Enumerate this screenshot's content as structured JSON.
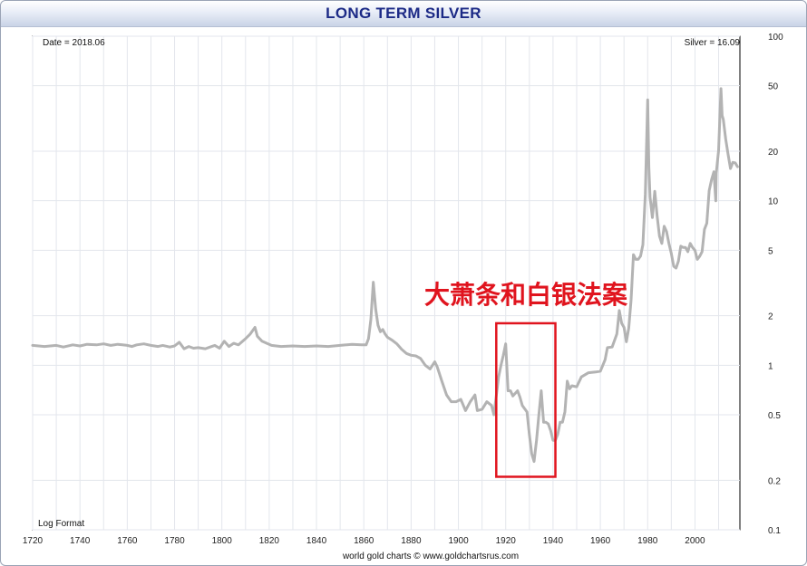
{
  "chart_data": {
    "type": "line",
    "title": "LONG TERM SILVER",
    "date_label": "Date = 2018.06",
    "value_label": "Silver = 16.09",
    "scale_label": "Log Format",
    "credit": "world gold charts © www.goldchartsrus.com",
    "annotation": "大萧条和白银法案",
    "annotation_box": {
      "x": [
        1916,
        1941
      ],
      "y": [
        0.21,
        1.8
      ]
    },
    "y_scale": "log",
    "xlim": [
      1720,
      2019
    ],
    "ylim": [
      0.1,
      100
    ],
    "x_ticks": [
      1720,
      1740,
      1760,
      1780,
      1800,
      1820,
      1840,
      1860,
      1880,
      1900,
      1920,
      1940,
      1960,
      1980,
      2000
    ],
    "y_ticks": [
      "100",
      "50",
      "20",
      "10",
      "5",
      "2",
      "1",
      "0.5",
      "0.2",
      "0.1"
    ],
    "grid": true,
    "line_color": "#b3b3b3",
    "annotation_color": "#e0141e",
    "series": [
      {
        "points": [
          [
            1720,
            1.32
          ],
          [
            1725,
            1.3
          ],
          [
            1730,
            1.32
          ],
          [
            1733,
            1.29
          ],
          [
            1737,
            1.33
          ],
          [
            1740,
            1.31
          ],
          [
            1743,
            1.34
          ],
          [
            1747,
            1.33
          ],
          [
            1750,
            1.35
          ],
          [
            1753,
            1.32
          ],
          [
            1756,
            1.34
          ],
          [
            1758,
            1.33
          ],
          [
            1760,
            1.32
          ],
          [
            1762,
            1.3
          ],
          [
            1764,
            1.33
          ],
          [
            1767,
            1.35
          ],
          [
            1770,
            1.32
          ],
          [
            1773,
            1.3
          ],
          [
            1775,
            1.32
          ],
          [
            1778,
            1.29
          ],
          [
            1780,
            1.31
          ],
          [
            1782,
            1.38
          ],
          [
            1784,
            1.26
          ],
          [
            1786,
            1.3
          ],
          [
            1788,
            1.27
          ],
          [
            1790,
            1.28
          ],
          [
            1793,
            1.26
          ],
          [
            1795,
            1.29
          ],
          [
            1797,
            1.32
          ],
          [
            1799,
            1.27
          ],
          [
            1801,
            1.4
          ],
          [
            1803,
            1.3
          ],
          [
            1805,
            1.36
          ],
          [
            1807,
            1.33
          ],
          [
            1810,
            1.45
          ],
          [
            1812,
            1.55
          ],
          [
            1814,
            1.7
          ],
          [
            1815,
            1.5
          ],
          [
            1817,
            1.4
          ],
          [
            1819,
            1.36
          ],
          [
            1821,
            1.32
          ],
          [
            1825,
            1.3
          ],
          [
            1830,
            1.31
          ],
          [
            1835,
            1.3
          ],
          [
            1840,
            1.31
          ],
          [
            1845,
            1.3
          ],
          [
            1850,
            1.32
          ],
          [
            1855,
            1.34
          ],
          [
            1859,
            1.33
          ],
          [
            1861,
            1.33
          ],
          [
            1862,
            1.45
          ],
          [
            1863,
            1.9
          ],
          [
            1864,
            3.2
          ],
          [
            1865,
            2.2
          ],
          [
            1866,
            1.75
          ],
          [
            1867,
            1.6
          ],
          [
            1868,
            1.65
          ],
          [
            1869,
            1.55
          ],
          [
            1870,
            1.48
          ],
          [
            1872,
            1.42
          ],
          [
            1874,
            1.35
          ],
          [
            1876,
            1.25
          ],
          [
            1878,
            1.18
          ],
          [
            1880,
            1.15
          ],
          [
            1882,
            1.14
          ],
          [
            1884,
            1.1
          ],
          [
            1886,
            1.0
          ],
          [
            1888,
            0.95
          ],
          [
            1890,
            1.05
          ],
          [
            1891,
            0.98
          ],
          [
            1893,
            0.8
          ],
          [
            1895,
            0.66
          ],
          [
            1897,
            0.6
          ],
          [
            1899,
            0.6
          ],
          [
            1901,
            0.62
          ],
          [
            1903,
            0.53
          ],
          [
            1905,
            0.6
          ],
          [
            1907,
            0.66
          ],
          [
            1908,
            0.53
          ],
          [
            1910,
            0.54
          ],
          [
            1912,
            0.6
          ],
          [
            1914,
            0.57
          ],
          [
            1915,
            0.5
          ],
          [
            1916,
            0.65
          ],
          [
            1917,
            0.85
          ],
          [
            1918,
            1.0
          ],
          [
            1919,
            1.15
          ],
          [
            1920,
            1.35
          ],
          [
            1921,
            0.7
          ],
          [
            1922,
            0.7
          ],
          [
            1923,
            0.65
          ],
          [
            1925,
            0.7
          ],
          [
            1926,
            0.64
          ],
          [
            1927,
            0.57
          ],
          [
            1929,
            0.52
          ],
          [
            1930,
            0.38
          ],
          [
            1931,
            0.29
          ],
          [
            1932,
            0.26
          ],
          [
            1933,
            0.35
          ],
          [
            1934,
            0.5
          ],
          [
            1935,
            0.7
          ],
          [
            1936,
            0.45
          ],
          [
            1937,
            0.45
          ],
          [
            1938,
            0.44
          ],
          [
            1939,
            0.4
          ],
          [
            1940,
            0.35
          ],
          [
            1941,
            0.35
          ],
          [
            1942,
            0.38
          ],
          [
            1943,
            0.45
          ],
          [
            1944,
            0.45
          ],
          [
            1945,
            0.52
          ],
          [
            1946,
            0.8
          ],
          [
            1947,
            0.72
          ],
          [
            1948,
            0.75
          ],
          [
            1950,
            0.74
          ],
          [
            1952,
            0.85
          ],
          [
            1955,
            0.9
          ],
          [
            1958,
            0.91
          ],
          [
            1960,
            0.92
          ],
          [
            1962,
            1.08
          ],
          [
            1963,
            1.28
          ],
          [
            1965,
            1.29
          ],
          [
            1967,
            1.55
          ],
          [
            1968,
            2.15
          ],
          [
            1969,
            1.8
          ],
          [
            1970,
            1.7
          ],
          [
            1971,
            1.39
          ],
          [
            1972,
            1.68
          ],
          [
            1973,
            2.5
          ],
          [
            1974,
            4.7
          ],
          [
            1975,
            4.4
          ],
          [
            1976,
            4.4
          ],
          [
            1977,
            4.6
          ],
          [
            1978,
            5.4
          ],
          [
            1979,
            11.0
          ],
          [
            1980,
            41.0
          ],
          [
            1980.5,
            16.0
          ],
          [
            1981,
            10.5
          ],
          [
            1982,
            7.9
          ],
          [
            1983,
            11.4
          ],
          [
            1984,
            8.1
          ],
          [
            1985,
            6.1
          ],
          [
            1986,
            5.5
          ],
          [
            1987,
            7.0
          ],
          [
            1988,
            6.5
          ],
          [
            1989,
            5.5
          ],
          [
            1990,
            4.8
          ],
          [
            1991,
            4.0
          ],
          [
            1992,
            3.9
          ],
          [
            1993,
            4.3
          ],
          [
            1994,
            5.3
          ],
          [
            1995,
            5.2
          ],
          [
            1996,
            5.2
          ],
          [
            1997,
            4.9
          ],
          [
            1998,
            5.5
          ],
          [
            1999,
            5.2
          ],
          [
            2000,
            5.0
          ],
          [
            2001,
            4.4
          ],
          [
            2002,
            4.6
          ],
          [
            2003,
            4.9
          ],
          [
            2004,
            6.7
          ],
          [
            2005,
            7.3
          ],
          [
            2006,
            11.5
          ],
          [
            2007,
            13.4
          ],
          [
            2008,
            15.0
          ],
          [
            2008.8,
            10.0
          ],
          [
            2009,
            14.7
          ],
          [
            2010,
            20.2
          ],
          [
            2011,
            48.0
          ],
          [
            2011.5,
            33.0
          ],
          [
            2012,
            31.2
          ],
          [
            2013,
            23.8
          ],
          [
            2014,
            19.1
          ],
          [
            2015,
            15.7
          ],
          [
            2016,
            17.1
          ],
          [
            2017,
            17.0
          ],
          [
            2018,
            16.1
          ]
        ]
      }
    ]
  }
}
